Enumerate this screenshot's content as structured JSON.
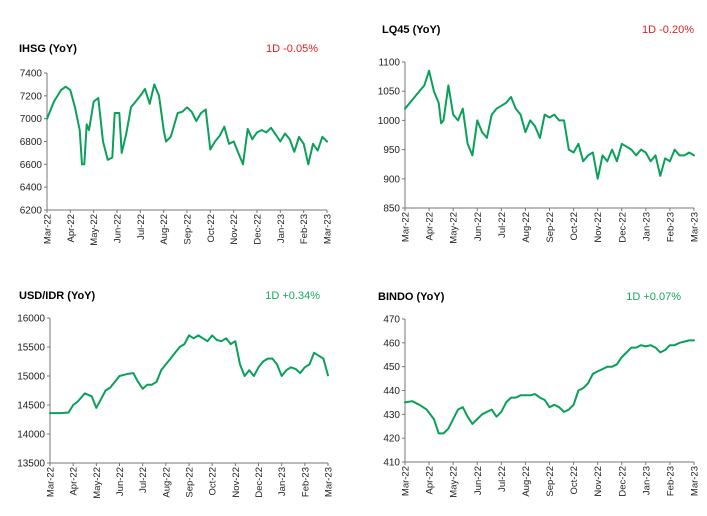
{
  "colors": {
    "line": "#0aa05a",
    "negative": "#e0201f",
    "positive": "#17a85e"
  },
  "chart_data": [
    {
      "type": "line",
      "title": "IHSG (YoY)",
      "change": "1D -0.05%",
      "change_sign": "negative",
      "x_ticks": [
        "Mar-22",
        "Apr-22",
        "May-22",
        "Jun-22",
        "Jul-22",
        "Aug-22",
        "Sep-22",
        "Oct-22",
        "Nov-22",
        "Dec-22",
        "Jan-23",
        "Feb-23",
        "Mar-23"
      ],
      "ylim": [
        6200,
        7400
      ],
      "y_ticks": [
        "6200",
        "6400",
        "6600",
        "6800",
        "7000",
        "7200",
        "7400"
      ],
      "x": [
        0,
        0.3,
        0.6,
        0.8,
        1.0,
        1.2,
        1.4,
        1.5,
        1.6,
        1.7,
        1.8,
        2.0,
        2.2,
        2.4,
        2.6,
        2.8,
        2.9,
        3.1,
        3.2,
        3.4,
        3.6,
        3.8,
        4.0,
        4.2,
        4.4,
        4.6,
        4.8,
        5.0,
        5.1,
        5.3,
        5.6,
        5.8,
        6.0,
        6.2,
        6.4,
        6.6,
        6.8,
        7.0,
        7.2,
        7.4,
        7.6,
        7.8,
        8.0,
        8.2,
        8.4,
        8.6,
        8.8,
        9.0,
        9.2,
        9.4,
        9.6,
        9.8,
        10.0,
        10.2,
        10.4,
        10.6,
        10.8,
        11.0,
        11.2,
        11.4,
        11.6,
        11.8,
        12.0
      ],
      "values": [
        7000,
        7150,
        7250,
        7280,
        7250,
        7100,
        6900,
        6600,
        6600,
        6950,
        6900,
        7150,
        7180,
        6800,
        6640,
        6660,
        7050,
        7050,
        6700,
        6870,
        7100,
        7150,
        7200,
        7260,
        7130,
        7300,
        7200,
        6900,
        6800,
        6840,
        7050,
        7060,
        7100,
        7060,
        6980,
        7050,
        7080,
        6730,
        6800,
        6850,
        6930,
        6780,
        6800,
        6700,
        6600,
        6910,
        6820,
        6880,
        6900,
        6880,
        6920,
        6860,
        6800,
        6870,
        6820,
        6710,
        6840,
        6780,
        6600,
        6780,
        6720,
        6840,
        6800
      ]
    },
    {
      "type": "line",
      "title": "LQ45 (YoY)",
      "change": "1D -0.20%",
      "change_sign": "negative",
      "x_ticks": [
        "Mar-22",
        "Apr-22",
        "May-22",
        "Jun-22",
        "Jul-22",
        "Aug-22",
        "Sep-22",
        "Oct-22",
        "Nov-22",
        "Dec-22",
        "Jan-23",
        "Feb-23",
        "Mar-23"
      ],
      "ylim": [
        850,
        1100
      ],
      "y_ticks": [
        "850",
        "900",
        "950",
        "1000",
        "1050",
        "1100"
      ],
      "x": [
        0,
        0.3,
        0.6,
        0.8,
        1.0,
        1.2,
        1.4,
        1.5,
        1.6,
        1.8,
        2.0,
        2.2,
        2.4,
        2.6,
        2.8,
        3.0,
        3.2,
        3.4,
        3.6,
        3.8,
        4.0,
        4.2,
        4.4,
        4.6,
        4.8,
        5.0,
        5.2,
        5.4,
        5.6,
        5.8,
        6.0,
        6.2,
        6.4,
        6.6,
        6.8,
        7.0,
        7.2,
        7.4,
        7.6,
        7.8,
        8.0,
        8.2,
        8.4,
        8.6,
        8.8,
        9.0,
        9.2,
        9.4,
        9.6,
        9.8,
        10.0,
        10.2,
        10.4,
        10.6,
        10.8,
        11.0,
        11.2,
        11.4,
        11.6,
        11.8,
        12.0
      ],
      "values": [
        1020,
        1035,
        1050,
        1060,
        1085,
        1050,
        1030,
        995,
        1000,
        1060,
        1010,
        1000,
        1020,
        960,
        940,
        1000,
        980,
        970,
        1010,
        1020,
        1025,
        1030,
        1040,
        1020,
        1010,
        980,
        1000,
        990,
        970,
        1010,
        1005,
        1010,
        1000,
        1000,
        950,
        945,
        960,
        930,
        940,
        945,
        900,
        940,
        930,
        950,
        930,
        960,
        955,
        950,
        940,
        950,
        945,
        930,
        940,
        905,
        935,
        930,
        950,
        940,
        940,
        945,
        940
      ]
    },
    {
      "type": "line",
      "title": "USD/IDR (YoY)",
      "change": "1D +0.34%",
      "change_sign": "positive",
      "x_ticks": [
        "Mar-22",
        "Apr-22",
        "May-22",
        "Jun-22",
        "Jul-22",
        "Aug-22",
        "Sep-22",
        "Oct-22",
        "Nov-22",
        "Dec-22",
        "Jan-23",
        "Feb-23",
        "Mar-23"
      ],
      "ylim": [
        13500,
        16000
      ],
      "y_ticks": [
        "13500",
        "14000",
        "14500",
        "15000",
        "15500",
        "16000"
      ],
      "x": [
        0,
        0.5,
        0.8,
        1.0,
        1.2,
        1.5,
        1.8,
        2.0,
        2.2,
        2.4,
        2.6,
        2.8,
        3.0,
        3.2,
        3.4,
        3.6,
        3.8,
        4.0,
        4.2,
        4.4,
        4.6,
        4.8,
        5.0,
        5.2,
        5.4,
        5.6,
        5.8,
        6.0,
        6.2,
        6.4,
        6.6,
        6.8,
        7.0,
        7.2,
        7.4,
        7.6,
        7.8,
        8.0,
        8.2,
        8.4,
        8.6,
        8.8,
        9.0,
        9.2,
        9.4,
        9.6,
        9.8,
        10.0,
        10.2,
        10.4,
        10.6,
        10.8,
        11.0,
        11.2,
        11.4,
        11.6,
        11.8,
        12.0
      ],
      "values": [
        14360,
        14360,
        14370,
        14500,
        14560,
        14700,
        14650,
        14450,
        14600,
        14750,
        14800,
        14900,
        15000,
        15020,
        15040,
        15050,
        14900,
        14780,
        14850,
        14850,
        14900,
        15100,
        15200,
        15300,
        15400,
        15500,
        15550,
        15700,
        15650,
        15700,
        15650,
        15600,
        15700,
        15620,
        15600,
        15650,
        15550,
        15600,
        15200,
        15000,
        15100,
        15000,
        15150,
        15250,
        15300,
        15300,
        15200,
        15000,
        15100,
        15150,
        15120,
        15050,
        15150,
        15200,
        15400,
        15350,
        15300,
        15010
      ]
    },
    {
      "type": "line",
      "title": "BINDO (YoY)",
      "change": "1D +0.07%",
      "change_sign": "positive",
      "x_ticks": [
        "Mar-22",
        "Apr-22",
        "May-22",
        "Jun-22",
        "Jul-22",
        "Aug-22",
        "Sep-22",
        "Oct-22",
        "Nov-22",
        "Dec-22",
        "Jan-23",
        "Feb-23",
        "Mar-23"
      ],
      "ylim": [
        410,
        470
      ],
      "y_ticks": [
        "410",
        "420",
        "430",
        "440",
        "450",
        "460",
        "470"
      ],
      "x": [
        0,
        0.3,
        0.6,
        0.9,
        1.2,
        1.4,
        1.6,
        1.8,
        2.0,
        2.2,
        2.4,
        2.6,
        2.8,
        3.0,
        3.2,
        3.4,
        3.6,
        3.8,
        4.0,
        4.2,
        4.4,
        4.6,
        4.8,
        5.0,
        5.2,
        5.4,
        5.6,
        5.8,
        6.0,
        6.2,
        6.4,
        6.6,
        6.8,
        7.0,
        7.2,
        7.4,
        7.6,
        7.8,
        8.0,
        8.2,
        8.4,
        8.6,
        8.8,
        9.0,
        9.2,
        9.4,
        9.6,
        9.8,
        10.0,
        10.2,
        10.4,
        10.6,
        10.8,
        11.0,
        11.2,
        11.4,
        11.6,
        11.8,
        12.0
      ],
      "values": [
        435,
        435.5,
        434,
        432,
        428,
        422,
        422,
        424,
        428,
        432,
        433,
        429,
        426,
        428,
        430,
        431,
        432,
        429,
        431,
        435,
        437,
        437,
        438,
        438,
        438,
        438.5,
        437,
        436,
        433,
        434,
        433,
        431,
        432,
        434,
        440,
        441,
        443,
        447,
        448,
        449,
        450,
        450,
        451,
        454,
        456,
        458,
        458,
        459,
        458.5,
        459,
        458,
        456,
        457,
        459,
        459,
        460,
        460.5,
        461,
        461
      ]
    }
  ]
}
